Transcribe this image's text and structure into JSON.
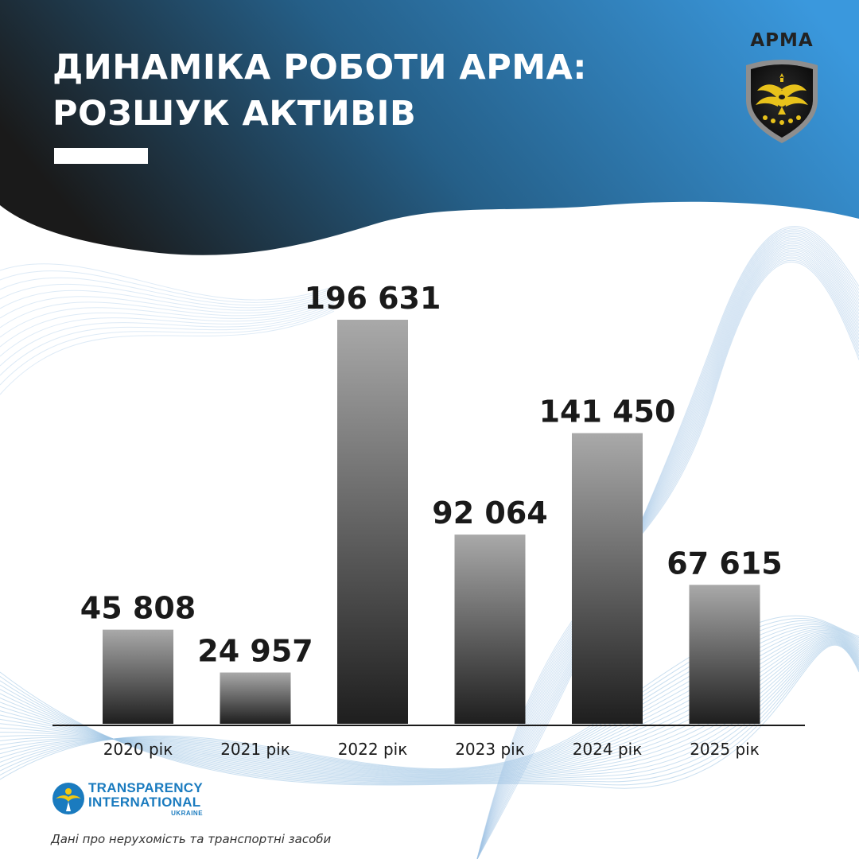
{
  "header": {
    "title_line1": "ДИНАМІКА РОБОТИ АРМА:",
    "title_line2": "РОЗШУК АКТИВІВ"
  },
  "logo": {
    "text": "АРМА"
  },
  "colors": {
    "header_dark": "#1a1a1a",
    "header_mid": "#255f88",
    "header_light": "#3a98dd",
    "bar_top": "#a9a9a9",
    "bar_bottom": "#1e1e1e",
    "label_text": "#1a1a1a",
    "wave_lines": "#9fc4e4",
    "ti_blue": "#1a7bbf",
    "ti_yellow": "#f2c811"
  },
  "chart_data": {
    "type": "bar",
    "categories": [
      "2020 рік",
      "2021 рік",
      "2022 рік",
      "2023 рік",
      "2024 рік",
      "2025 рік"
    ],
    "values": [
      45808,
      24957,
      196631,
      92064,
      141450,
      67615
    ],
    "value_labels": [
      "45 808",
      "24 957",
      "196 631",
      "92 064",
      "141 450",
      "67 615"
    ],
    "title": "ДИНАМІКА РОБОТИ АРМА: РОЗШУК АКТИВІВ",
    "xlabel": "",
    "ylabel": "",
    "ylim": [
      0,
      196631
    ],
    "grid": false,
    "legend": "none"
  },
  "footer": {
    "org_line1": "TRANSPARENCY",
    "org_line2": "INTERNATIONAL",
    "org_line3": "UKRAINE",
    "note": "Дані про нерухомість та транспортні засоби"
  },
  "icons": [
    "arma-shield-icon",
    "transparency-international-icon"
  ]
}
